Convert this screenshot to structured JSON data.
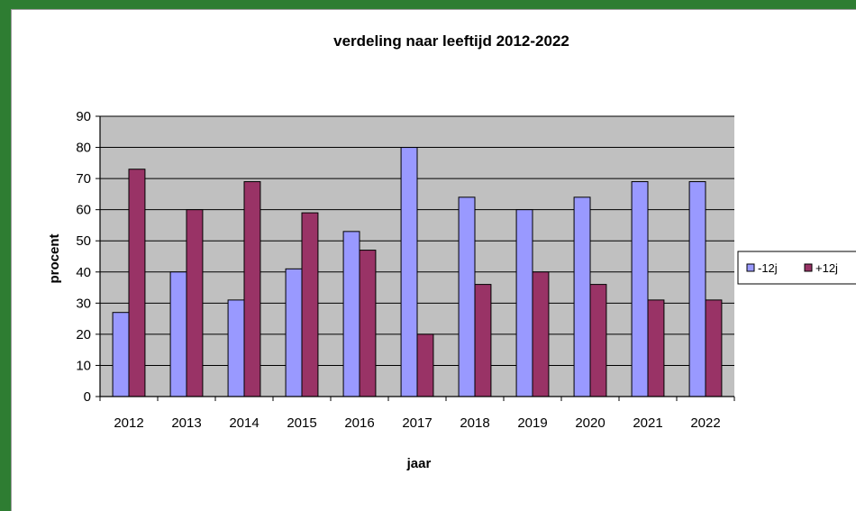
{
  "chart_data": {
    "type": "bar",
    "title": "verdeling naar leeftijd  2012-2022",
    "xlabel": "jaar",
    "ylabel": "procent",
    "ylim": [
      0,
      90
    ],
    "yticks": [
      0,
      10,
      20,
      30,
      40,
      50,
      60,
      70,
      80,
      90
    ],
    "grid": true,
    "legend_position": "right",
    "plot_background": "#c0c0c0",
    "categories": [
      "2012",
      "2013",
      "2014",
      "2015",
      "2016",
      "2017",
      "2018",
      "2019",
      "2020",
      "2021",
      "2022"
    ],
    "series": [
      {
        "name": "-12j",
        "color": "#9999ff",
        "values": [
          27,
          40,
          31,
          41,
          53,
          80,
          64,
          60,
          64,
          69,
          69
        ]
      },
      {
        "name": "+12j",
        "color": "#993366",
        "values": [
          73,
          60,
          69,
          59,
          47,
          20,
          36,
          40,
          36,
          31,
          31
        ]
      }
    ]
  }
}
